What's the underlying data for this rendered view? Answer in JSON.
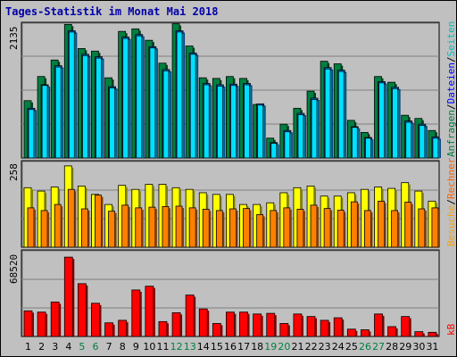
{
  "title": "Tages-Statistik im Monat Mai 2018",
  "panels": {
    "top": {
      "max_label": "2135",
      "right_label_parts": [
        "Anfragen",
        "/",
        "Dateien",
        "/",
        "Seiten"
      ],
      "right_label_colors": [
        "#008040",
        "#000000",
        "#0000ff",
        "#000000",
        "#00c0c0"
      ]
    },
    "middle": {
      "max_label": "258",
      "right_label_parts": [
        "Besuche",
        "/",
        "Rechner"
      ],
      "right_label_colors": [
        "#ffa000",
        "#000000",
        "#ff6000"
      ]
    },
    "bottom": {
      "max_label": "68520",
      "right_label_parts": [
        "kB"
      ],
      "right_label_colors": [
        "#ff0000"
      ]
    }
  },
  "colors": {
    "background": "#c0c0c0",
    "grid": "#808080",
    "anfragen": "#008040",
    "dateien": "#0080ff",
    "seiten": "#00e0ff",
    "besuche": "#ffff00",
    "rechner": "#ff8000",
    "kb": "#ff0000",
    "weekend_label": "#008040",
    "weekday_label": "#000000"
  },
  "chart_data": [
    {
      "type": "bar",
      "title": "Tages-Statistik im Monat Mai 2018",
      "categories": [
        "1",
        "2",
        "3",
        "4",
        "5",
        "6",
        "7",
        "8",
        "9",
        "10",
        "11",
        "12",
        "13",
        "14",
        "15",
        "16",
        "17",
        "18",
        "19",
        "20",
        "21",
        "22",
        "23",
        "24",
        "25",
        "26",
        "27",
        "28",
        "29",
        "30",
        "31"
      ],
      "weekend_days": [
        5,
        6,
        12,
        13,
        19,
        20,
        26,
        27
      ],
      "ylim": [
        0,
        2135
      ],
      "series": [
        {
          "name": "Anfragen",
          "values": [
            930,
            1310,
            1570,
            2130,
            1750,
            1710,
            1290,
            2020,
            2060,
            1880,
            1520,
            2140,
            1790,
            1290,
            1280,
            1310,
            1280,
            870,
            340,
            560,
            810,
            1080,
            1550,
            1510,
            620,
            430,
            1310,
            1220,
            700,
            650,
            460
          ]
        },
        {
          "name": "Dateien",
          "values": [
            810,
            1180,
            1480,
            2030,
            1660,
            1620,
            1150,
            1930,
            1970,
            1780,
            1420,
            2030,
            1680,
            1200,
            1180,
            1190,
            1200,
            880,
            270,
            460,
            730,
            970,
            1450,
            1410,
            520,
            350,
            1230,
            1140,
            610,
            560,
            360
          ]
        },
        {
          "name": "Seiten",
          "values": [
            790,
            1170,
            1460,
            2010,
            1640,
            1600,
            1130,
            1910,
            1950,
            1760,
            1400,
            2010,
            1660,
            1180,
            1160,
            1170,
            1180,
            860,
            260,
            440,
            710,
            950,
            1430,
            1390,
            510,
            340,
            1210,
            1120,
            590,
            540,
            340
          ]
        }
      ]
    },
    {
      "type": "bar",
      "categories": [
        "1",
        "2",
        "3",
        "4",
        "5",
        "6",
        "7",
        "8",
        "9",
        "10",
        "11",
        "12",
        "13",
        "14",
        "15",
        "16",
        "17",
        "18",
        "19",
        "20",
        "21",
        "22",
        "23",
        "24",
        "25",
        "26",
        "27",
        "28",
        "29",
        "30",
        "31"
      ],
      "ylim": [
        0,
        258
      ],
      "series": [
        {
          "name": "Besuche",
          "values": [
            180,
            170,
            182,
            245,
            185,
            160,
            130,
            187,
            175,
            190,
            190,
            180,
            175,
            165,
            160,
            160,
            130,
            130,
            135,
            165,
            180,
            185,
            155,
            155,
            165,
            175,
            182,
            178,
            195,
            170,
            140
          ]
        },
        {
          "name": "Rechner",
          "values": [
            120,
            112,
            130,
            175,
            117,
            158,
            110,
            128,
            120,
            122,
            124,
            125,
            120,
            116,
            112,
            117,
            118,
            100,
            112,
            120,
            116,
            128,
            118,
            113,
            138,
            112,
            140,
            112,
            137,
            117,
            120
          ]
        }
      ]
    },
    {
      "type": "bar",
      "categories": [
        "1",
        "2",
        "3",
        "4",
        "5",
        "6",
        "7",
        "8",
        "9",
        "10",
        "11",
        "12",
        "13",
        "14",
        "15",
        "16",
        "17",
        "18",
        "19",
        "20",
        "21",
        "22",
        "23",
        "24",
        "25",
        "26",
        "27",
        "28",
        "29",
        "30",
        "31"
      ],
      "ylim": [
        0,
        68520
      ],
      "series": [
        {
          "name": "kB",
          "values": [
            21000,
            20000,
            28000,
            63500,
            42500,
            27000,
            11500,
            13500,
            37500,
            40500,
            12500,
            19500,
            33500,
            22500,
            11000,
            20000,
            20000,
            18500,
            19000,
            11000,
            18500,
            16500,
            13500,
            15500,
            6500,
            6000,
            18500,
            8500,
            16500,
            4500,
            4000
          ]
        }
      ]
    }
  ]
}
